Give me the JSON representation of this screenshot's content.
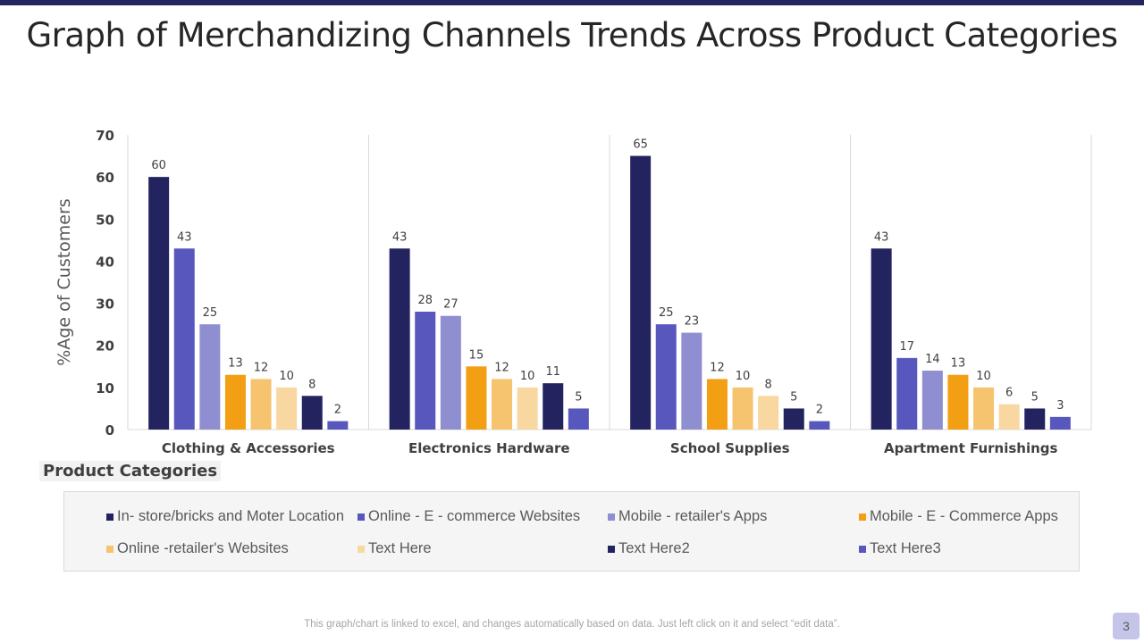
{
  "slide": {
    "title": "Graph of Merchandizing Channels Trends Across Product Categories",
    "footnote": "This graph/chart is linked to excel, and changes automatically based on data. Just left click on it and select “edit data”.",
    "page_number": "3",
    "accent_color": "#232360"
  },
  "chart_data": {
    "type": "bar",
    "title": "Graph of Merchandizing Channels Trends Across Product Categories",
    "xlabel": "Product Categories",
    "ylabel": "%Age of Customers",
    "ylim": [
      0,
      70
    ],
    "yticks": [
      0,
      10,
      20,
      30,
      40,
      50,
      60,
      70
    ],
    "grid": "vertical category separators",
    "legend_position": "bottom",
    "categories": [
      "Clothing & Accessories",
      "Electronics Hardware",
      "School Supplies",
      "Apartment Furnishings"
    ],
    "series": [
      {
        "name": "In- store/bricks and Moter Location",
        "color": "#232360",
        "values": [
          60,
          43,
          65,
          43
        ]
      },
      {
        "name": "Online - E - commerce Websites",
        "color": "#5757bd",
        "values": [
          43,
          28,
          25,
          17
        ]
      },
      {
        "name": "Mobile - retailer's Apps",
        "color": "#8e8ed0",
        "values": [
          25,
          27,
          23,
          14
        ]
      },
      {
        "name": "Mobile - E - Commerce Apps",
        "color": "#f29f13",
        "values": [
          13,
          15,
          12,
          13
        ]
      },
      {
        "name": "Online -retailer's Websites",
        "color": "#f6c36e",
        "values": [
          12,
          12,
          10,
          10
        ]
      },
      {
        "name": "Text Here",
        "color": "#f8d7a0",
        "values": [
          10,
          10,
          8,
          6
        ]
      },
      {
        "name": "Text Here2",
        "color": "#232360",
        "values": [
          8,
          11,
          5,
          5
        ]
      },
      {
        "name": "Text Here3",
        "color": "#5757bd",
        "values": [
          2,
          5,
          2,
          3
        ]
      }
    ]
  }
}
